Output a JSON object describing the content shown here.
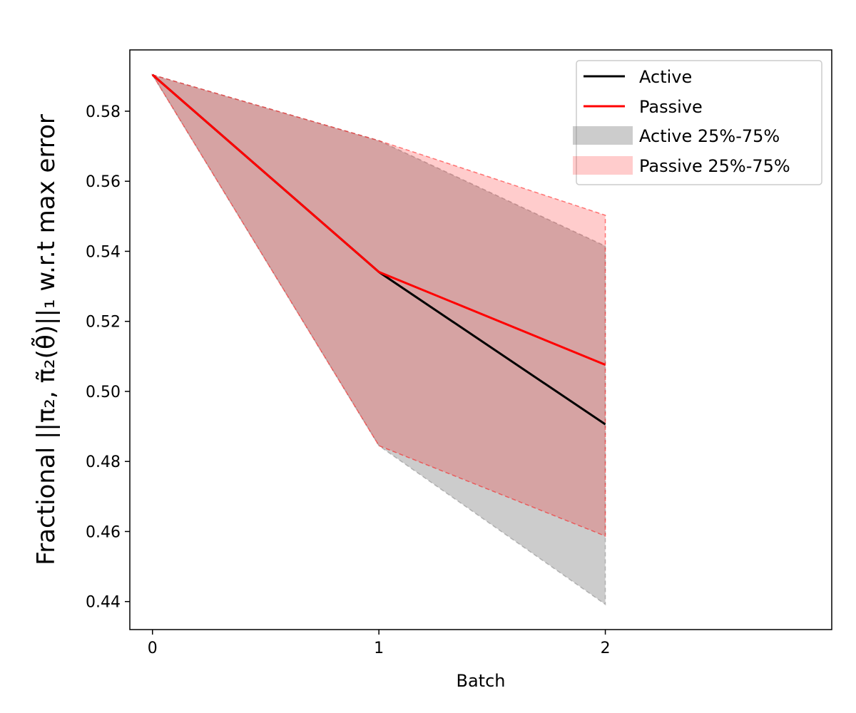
{
  "chart_data": {
    "type": "line",
    "title": "",
    "xlabel": "Batch",
    "ylabel": "Fractional ||π₂, π̃₂(θ̃)||₁ w.r.t max error",
    "x": [
      0,
      1,
      2
    ],
    "xlim": [
      -0.1,
      3.0
    ],
    "ylim": [
      0.432,
      0.5975
    ],
    "xticks": [
      0,
      1,
      2
    ],
    "yticks": [
      0.44,
      0.46,
      0.48,
      0.5,
      0.52,
      0.54,
      0.56,
      0.58
    ],
    "ytick_labels": [
      "0.44",
      "0.46",
      "0.48",
      "0.50",
      "0.52",
      "0.54",
      "0.56",
      "0.58"
    ],
    "grid": false,
    "legend_position": "top-right",
    "series": [
      {
        "name": "Active",
        "type": "line",
        "color": "#000000",
        "values": [
          0.5904,
          0.5341,
          0.4906
        ]
      },
      {
        "name": "Passive",
        "type": "line",
        "color": "#ff0000",
        "values": [
          0.5904,
          0.5341,
          0.5076
        ]
      }
    ],
    "bands": [
      {
        "name": "Active 25%-75%",
        "color": "#808080",
        "opacity": 0.4,
        "lower": [
          0.5904,
          0.4845,
          0.4392
        ],
        "upper": [
          0.5904,
          0.5716,
          0.5415
        ]
      },
      {
        "name": "Passive 25%-75%",
        "color": "#ff0000",
        "opacity": 0.2,
        "lower": [
          0.5904,
          0.4845,
          0.4587
        ],
        "upper": [
          0.5904,
          0.5716,
          0.5503
        ]
      }
    ]
  }
}
